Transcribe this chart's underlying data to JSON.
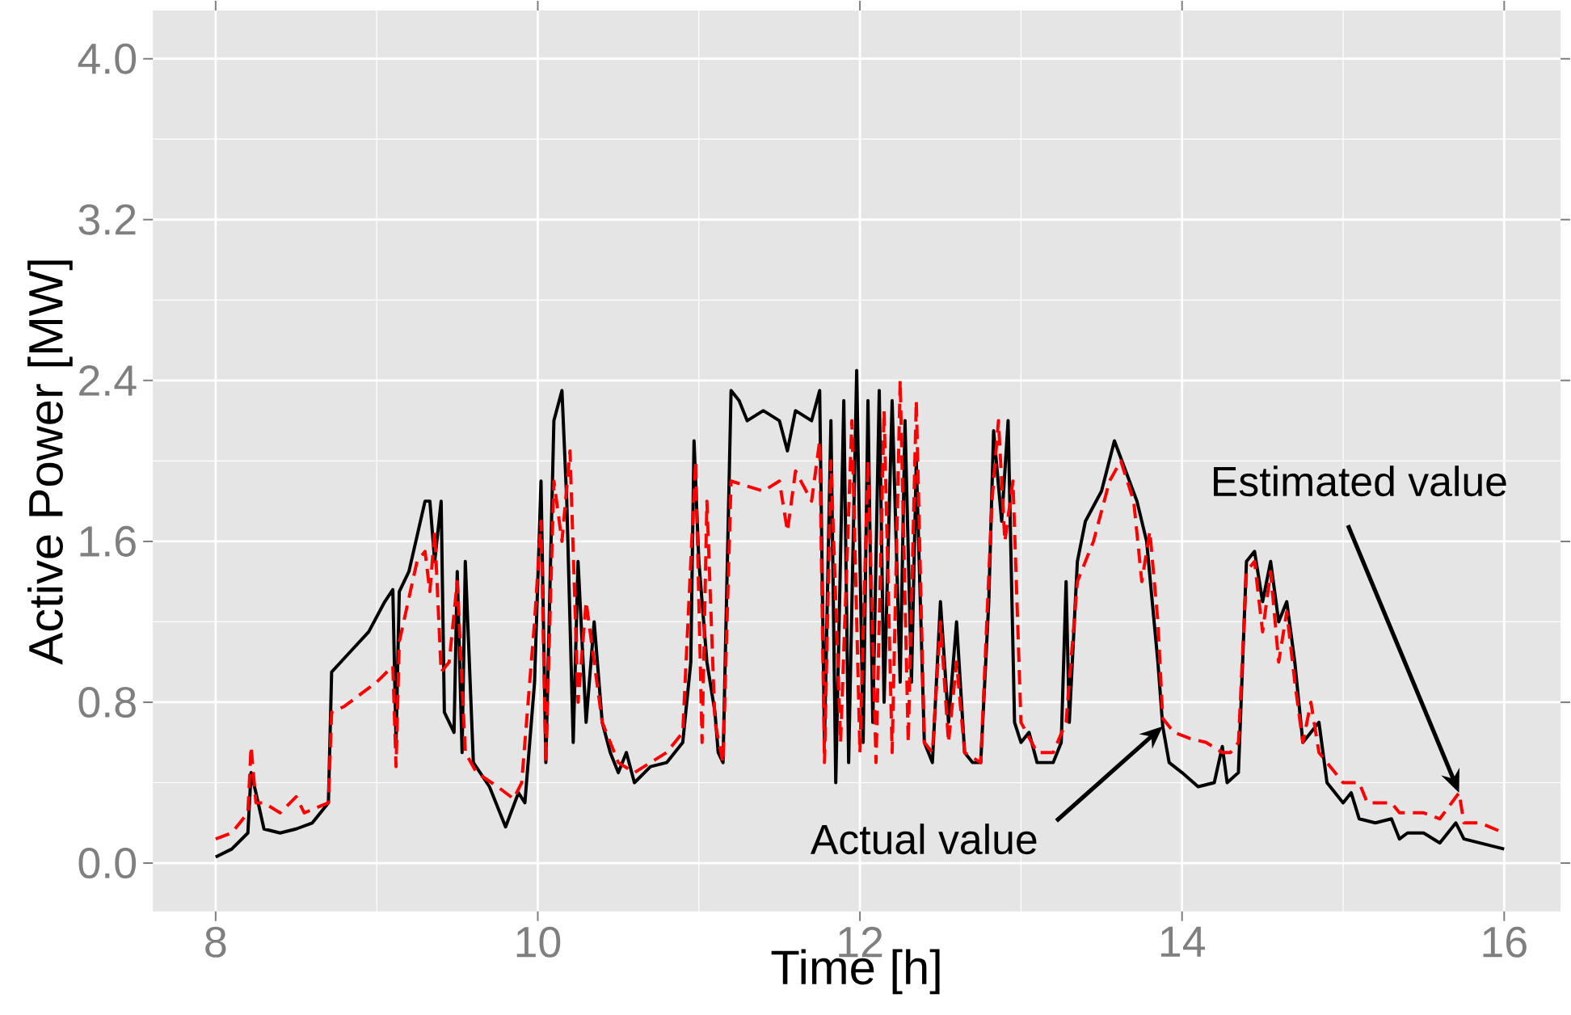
{
  "chart_data": {
    "type": "line",
    "xlabel": "Time [h]",
    "ylabel": "Active Power [MW]",
    "xlim": [
      7.61,
      16.35
    ],
    "ylim": [
      -0.24,
      4.24
    ],
    "xticks": [
      8,
      10,
      12,
      14,
      16
    ],
    "yticks": [
      {
        "value": 0,
        "label": "0.0"
      },
      0.8,
      1.6,
      2.4,
      3.2,
      {
        "value": 4,
        "label": "4.0"
      }
    ],
    "grid": true,
    "series": [
      {
        "color": "#000000",
        "line_style": "solid",
        "x": [
          8.0,
          8.1,
          8.2,
          8.22,
          8.25,
          8.3,
          8.4,
          8.5,
          8.6,
          8.7,
          8.72,
          8.8,
          8.95,
          9.05,
          9.1,
          9.12,
          9.14,
          9.2,
          9.3,
          9.33,
          9.36,
          9.4,
          9.42,
          9.48,
          9.5,
          9.53,
          9.55,
          9.6,
          9.7,
          9.8,
          9.88,
          9.92,
          9.98,
          10.02,
          10.05,
          10.1,
          10.15,
          10.18,
          10.22,
          10.25,
          10.3,
          10.35,
          10.4,
          10.45,
          10.5,
          10.55,
          10.6,
          10.7,
          10.8,
          10.9,
          10.95,
          10.97,
          11.0,
          11.05,
          11.1,
          11.12,
          11.15,
          11.2,
          11.25,
          11.3,
          11.4,
          11.5,
          11.55,
          11.6,
          11.7,
          11.75,
          11.78,
          11.82,
          11.85,
          11.9,
          11.93,
          11.98,
          12.02,
          12.05,
          12.08,
          12.12,
          12.15,
          12.2,
          12.25,
          12.28,
          12.32,
          12.35,
          12.4,
          12.45,
          12.5,
          12.55,
          12.6,
          12.65,
          12.7,
          12.75,
          12.8,
          12.83,
          12.88,
          12.92,
          12.96,
          13.0,
          13.05,
          13.1,
          13.2,
          13.25,
          13.28,
          13.3,
          13.35,
          13.4,
          13.5,
          13.58,
          13.65,
          13.72,
          13.78,
          13.85,
          13.88,
          13.92,
          14.0,
          14.1,
          14.2,
          14.25,
          14.28,
          14.35,
          14.4,
          14.45,
          14.5,
          14.55,
          14.6,
          14.65,
          14.7,
          14.75,
          14.8,
          14.85,
          14.9,
          15.0,
          15.05,
          15.1,
          15.2,
          15.3,
          15.35,
          15.4,
          15.5,
          15.6,
          15.7,
          15.75,
          15.85,
          16.0
        ],
        "values": [
          0.03,
          0.07,
          0.15,
          0.45,
          0.35,
          0.17,
          0.15,
          0.17,
          0.2,
          0.3,
          0.95,
          1.02,
          1.15,
          1.3,
          1.36,
          0.6,
          1.35,
          1.45,
          1.8,
          1.8,
          1.5,
          1.8,
          0.75,
          0.65,
          1.45,
          0.55,
          1.5,
          0.5,
          0.38,
          0.18,
          0.35,
          0.3,
          0.9,
          1.9,
          0.5,
          2.2,
          2.35,
          1.8,
          0.6,
          1.5,
          0.7,
          1.2,
          0.7,
          0.55,
          0.45,
          0.55,
          0.4,
          0.48,
          0.5,
          0.6,
          1.0,
          2.1,
          1.5,
          1.0,
          0.75,
          0.55,
          0.5,
          2.35,
          2.3,
          2.2,
          2.25,
          2.2,
          2.05,
          2.25,
          2.2,
          2.35,
          0.6,
          2.2,
          0.4,
          2.3,
          0.5,
          2.45,
          0.6,
          2.3,
          0.7,
          2.35,
          0.8,
          2.3,
          0.9,
          2.2,
          0.9,
          2.0,
          0.6,
          0.5,
          1.3,
          0.7,
          1.2,
          0.55,
          0.5,
          0.5,
          1.3,
          2.15,
          1.7,
          2.2,
          0.7,
          0.6,
          0.65,
          0.5,
          0.5,
          0.6,
          1.4,
          0.7,
          1.5,
          1.7,
          1.85,
          2.1,
          1.95,
          1.8,
          1.6,
          1.0,
          0.68,
          0.5,
          0.45,
          0.38,
          0.4,
          0.58,
          0.4,
          0.45,
          1.5,
          1.55,
          1.3,
          1.5,
          1.2,
          1.3,
          1.0,
          0.6,
          0.65,
          0.7,
          0.4,
          0.3,
          0.35,
          0.22,
          0.2,
          0.22,
          0.12,
          0.15,
          0.15,
          0.1,
          0.2,
          0.12,
          0.1,
          0.07
        ]
      },
      {
        "color": "#ff0000",
        "line_style": "dashed",
        "x": [
          8.0,
          8.1,
          8.2,
          8.22,
          8.25,
          8.3,
          8.4,
          8.5,
          8.55,
          8.7,
          8.72,
          8.8,
          9.0,
          9.1,
          9.12,
          9.14,
          9.25,
          9.3,
          9.33,
          9.36,
          9.4,
          9.45,
          9.5,
          9.55,
          9.62,
          9.75,
          9.85,
          9.9,
          9.98,
          10.02,
          10.05,
          10.1,
          10.15,
          10.2,
          10.25,
          10.3,
          10.4,
          10.5,
          10.6,
          10.7,
          10.8,
          10.9,
          10.95,
          10.98,
          11.02,
          11.05,
          11.1,
          11.15,
          11.2,
          11.4,
          11.5,
          11.55,
          11.6,
          11.7,
          11.75,
          11.78,
          11.82,
          11.88,
          11.95,
          12.0,
          12.05,
          12.1,
          12.15,
          12.2,
          12.25,
          12.3,
          12.35,
          12.4,
          12.45,
          12.5,
          12.55,
          12.6,
          12.65,
          12.75,
          12.82,
          12.86,
          12.9,
          12.95,
          13.0,
          13.1,
          13.2,
          13.28,
          13.35,
          13.45,
          13.55,
          13.62,
          13.7,
          13.75,
          13.8,
          13.85,
          13.88,
          13.95,
          14.05,
          14.15,
          14.25,
          14.3,
          14.35,
          14.4,
          14.45,
          14.5,
          14.55,
          14.6,
          14.65,
          14.7,
          14.75,
          14.8,
          14.85,
          14.95,
          15.0,
          15.1,
          15.15,
          15.3,
          15.35,
          15.5,
          15.6,
          15.72,
          15.75,
          15.85,
          16.0
        ],
        "values": [
          0.12,
          0.15,
          0.25,
          0.58,
          0.3,
          0.3,
          0.25,
          0.33,
          0.25,
          0.3,
          0.75,
          0.78,
          0.9,
          0.98,
          0.48,
          1.1,
          1.5,
          1.55,
          1.35,
          1.65,
          0.95,
          1.0,
          1.4,
          0.55,
          0.45,
          0.38,
          0.32,
          0.4,
          1.2,
          1.7,
          0.5,
          1.9,
          1.6,
          2.05,
          0.8,
          1.3,
          0.7,
          0.5,
          0.45,
          0.5,
          0.55,
          0.65,
          1.5,
          2.0,
          0.6,
          1.8,
          0.7,
          0.5,
          1.9,
          1.85,
          1.9,
          1.65,
          1.95,
          1.8,
          2.1,
          0.5,
          2.0,
          0.6,
          2.2,
          0.55,
          2.0,
          0.5,
          2.25,
          0.55,
          2.4,
          0.6,
          2.3,
          0.6,
          0.55,
          1.2,
          0.6,
          1.0,
          0.55,
          0.5,
          1.8,
          2.2,
          1.6,
          1.9,
          0.7,
          0.55,
          0.55,
          0.7,
          1.4,
          1.6,
          1.9,
          2.0,
          1.8,
          1.4,
          1.65,
          1.2,
          0.72,
          0.65,
          0.62,
          0.6,
          0.55,
          0.55,
          0.6,
          1.45,
          1.5,
          1.15,
          1.45,
          1.0,
          1.25,
          0.9,
          0.6,
          0.8,
          0.55,
          0.45,
          0.4,
          0.4,
          0.3,
          0.3,
          0.25,
          0.25,
          0.22,
          0.35,
          0.2,
          0.2,
          0.15
        ]
      }
    ],
    "annotations": [
      {
        "text": "Actual value",
        "x": 13.88,
        "y": 0.68
      },
      {
        "text": "Estimated  value",
        "x": 15.72,
        "y": 0.35
      }
    ]
  }
}
